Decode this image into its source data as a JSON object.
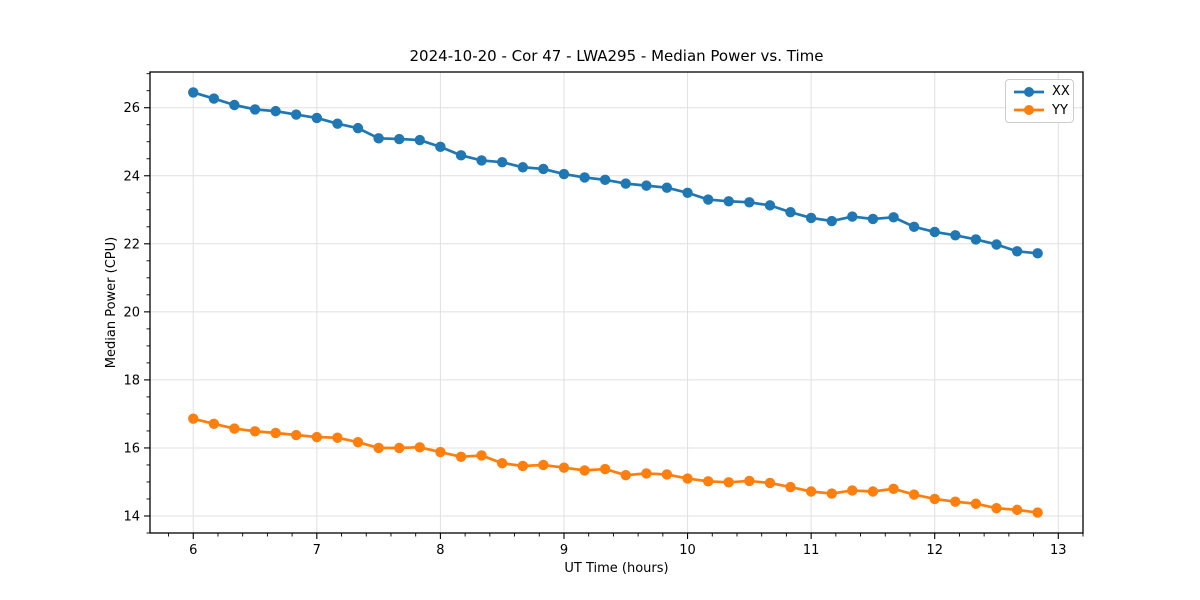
{
  "figure": {
    "background": "#ffffff"
  },
  "chart_data": {
    "type": "line",
    "title": "2024-10-20 - Cor 47 - LWA295 - Median Power vs. Time",
    "xlabel": "UT Time (hours)",
    "ylabel": "Median Power (CPU)",
    "xlim": [
      5.65,
      13.2
    ],
    "ylim": [
      13.5,
      27.05
    ],
    "x_ticks": [
      6,
      7,
      8,
      9,
      10,
      11,
      12,
      13
    ],
    "y_ticks": [
      14,
      16,
      18,
      20,
      22,
      24,
      26
    ],
    "x_minor_step": 0.2,
    "y_minor_step": 0.5,
    "grid": true,
    "legend_position": "upper right",
    "x": [
      6.0,
      6.167,
      6.333,
      6.5,
      6.667,
      6.833,
      7.0,
      7.167,
      7.333,
      7.5,
      7.667,
      7.833,
      8.0,
      8.167,
      8.333,
      8.5,
      8.667,
      8.833,
      9.0,
      9.167,
      9.333,
      9.5,
      9.667,
      9.833,
      10.0,
      10.167,
      10.333,
      10.5,
      10.667,
      10.833,
      11.0,
      11.167,
      11.333,
      11.5,
      11.667,
      11.833,
      12.0,
      12.167,
      12.333,
      12.5,
      12.667,
      12.833
    ],
    "series": [
      {
        "name": "XX",
        "color": "#1f77b4",
        "marker": "circle",
        "values": [
          26.45,
          26.27,
          26.08,
          25.95,
          25.9,
          25.8,
          25.7,
          25.53,
          25.4,
          25.1,
          25.08,
          25.05,
          24.85,
          24.6,
          24.45,
          24.4,
          24.25,
          24.2,
          24.05,
          23.95,
          23.88,
          23.77,
          23.71,
          23.65,
          23.5,
          23.3,
          23.25,
          23.22,
          23.13,
          22.93,
          22.76,
          22.67,
          22.8,
          22.73,
          22.78,
          22.5,
          22.35,
          22.25,
          22.13,
          21.98,
          21.78,
          21.72
        ]
      },
      {
        "name": "YY",
        "color": "#ff7f0e",
        "marker": "circle",
        "values": [
          16.86,
          16.71,
          16.57,
          16.49,
          16.44,
          16.38,
          16.32,
          16.3,
          16.17,
          16.0,
          16.0,
          16.02,
          15.88,
          15.74,
          15.78,
          15.55,
          15.47,
          15.5,
          15.42,
          15.34,
          15.38,
          15.2,
          15.25,
          15.22,
          15.1,
          15.02,
          14.99,
          15.03,
          14.97,
          14.85,
          14.72,
          14.66,
          14.75,
          14.72,
          14.8,
          14.63,
          14.5,
          14.42,
          14.36,
          14.23,
          14.18,
          14.1
        ]
      }
    ],
    "style": {
      "grid_color": "#e0e0e0",
      "spine_color": "#000000",
      "tick_color": "#000000",
      "tick_label_color": "#000000",
      "marker_radius": 5.2,
      "line_width": 2.7
    }
  }
}
